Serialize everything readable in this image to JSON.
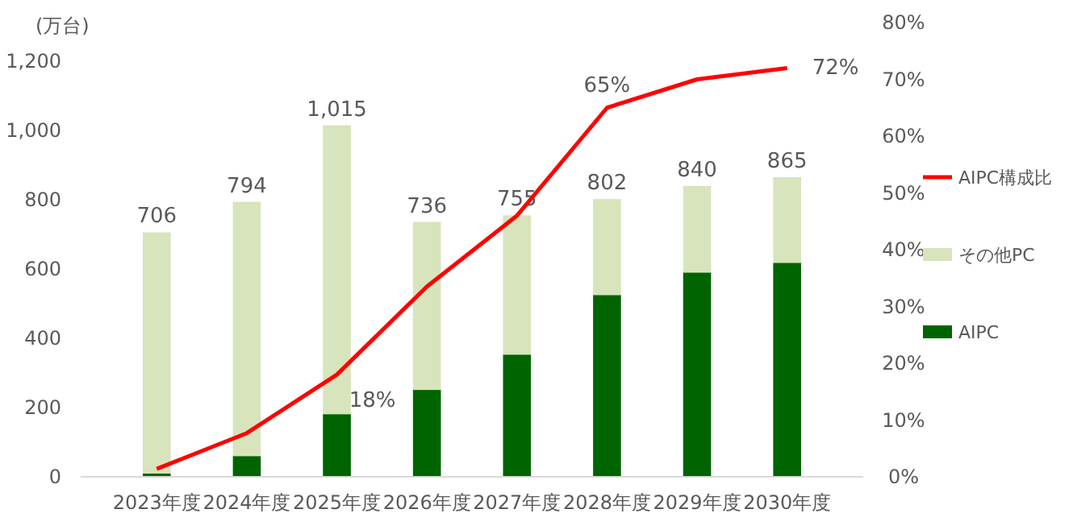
{
  "chart_data": {
    "type": "bar",
    "stacked": true,
    "ylabel": "(万台)",
    "categories": [
      "2023年度",
      "2024年度",
      "2025年度",
      "2026年度",
      "2027年度",
      "2028年度",
      "2029年度",
      "2030年度"
    ],
    "series": [
      {
        "name": "AIPC",
        "color": "#006400",
        "values": [
          10,
          60,
          181,
          251,
          353,
          525,
          590,
          618
        ]
      },
      {
        "name": "その他PC",
        "color": "#d8e4bc",
        "values": [
          696,
          734,
          834,
          485,
          402,
          277,
          250,
          247
        ]
      },
      {
        "name": "AIPC構成比",
        "type": "line",
        "axis": "y2",
        "color": "#ff0000",
        "values": [
          1.4,
          7.7,
          18,
          33.5,
          46,
          65,
          70,
          72
        ],
        "value_labels": [
          null,
          null,
          "18%",
          null,
          null,
          "65%",
          null,
          "72%"
        ]
      }
    ],
    "totals": [
      "706",
      "794",
      "1,015",
      "736",
      "755",
      "802",
      "840",
      "865"
    ],
    "ylim": [
      0,
      1200
    ],
    "yticks": [
      0,
      {
        "value": 200,
        "label": "200"
      },
      400,
      600,
      800,
      {
        "value": 1000,
        "label": "1,000"
      },
      {
        "value": 1200,
        "label": "1,200"
      }
    ],
    "y2lim": [
      0,
      80
    ],
    "y2ticks": [
      {
        "value": 0,
        "label": "0%"
      },
      {
        "value": 10,
        "label": "10%"
      },
      {
        "value": 20,
        "label": "20%"
      },
      {
        "value": 30,
        "label": "30%"
      },
      {
        "value": 40,
        "label": "40%"
      },
      {
        "value": 50,
        "label": "50%"
      },
      {
        "value": 60,
        "label": "60%"
      },
      {
        "value": 70,
        "label": "70%"
      },
      {
        "value": 80,
        "label": "80%"
      }
    ],
    "legend": "right",
    "grid": false
  }
}
